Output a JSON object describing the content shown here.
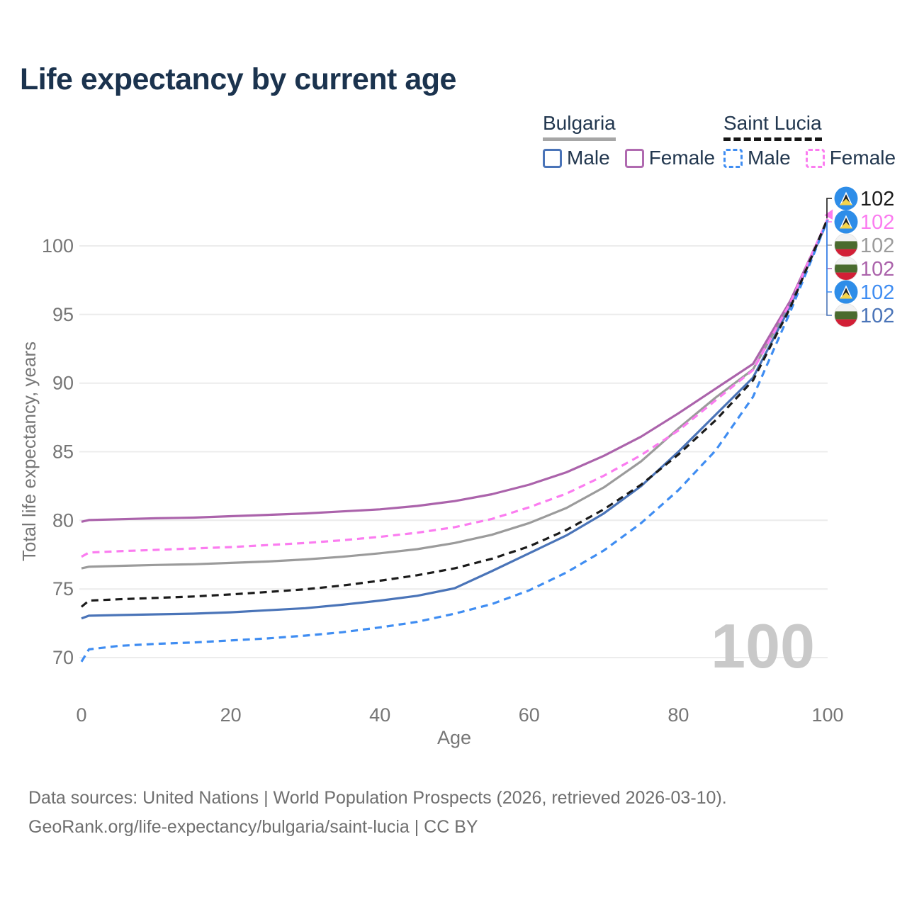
{
  "title": "Life expectancy by current age",
  "legend": {
    "groups": [
      {
        "label": "Bulgaria",
        "underline_style": "solid",
        "underline_color": "#a6a6a6",
        "items": [
          {
            "label": "Male",
            "color": "#4a74b8",
            "dashed": false
          },
          {
            "label": "Female",
            "color": "#b06ab0",
            "dashed": false
          }
        ]
      },
      {
        "label": "Saint Lucia",
        "underline_style": "dashed",
        "underline_color": "#161616",
        "items": [
          {
            "label": "Male",
            "color": "#3f8df2",
            "dashed": true
          },
          {
            "label": "Female",
            "color": "#fb7cf0",
            "dashed": true
          }
        ]
      }
    ]
  },
  "chart_data": {
    "type": "line",
    "title": "Life expectancy by current age",
    "xlabel": "Age",
    "ylabel": "Total life expectancy, years",
    "xticks": [
      0,
      20,
      40,
      60,
      80,
      100
    ],
    "yticks": [
      70,
      75,
      80,
      85,
      90,
      95,
      100
    ],
    "xlim": [
      0,
      100
    ],
    "ylim": [
      68.5,
      103.5
    ],
    "grid": "horizontal",
    "legend_position": "top-right",
    "watermark": "100",
    "x": [
      0,
      1,
      5,
      10,
      15,
      20,
      25,
      30,
      35,
      40,
      45,
      50,
      55,
      60,
      65,
      70,
      75,
      80,
      85,
      90,
      95,
      100
    ],
    "series": [
      {
        "name": "Bulgaria Total",
        "country": "Bulgaria",
        "sex": "Both",
        "color": "#9b9b9b",
        "dashed": false,
        "flag": "bulgaria",
        "label_row": 2,
        "end_label": "102",
        "values": [
          76.5,
          76.62,
          76.68,
          76.75,
          76.8,
          76.9,
          77.0,
          77.15,
          77.35,
          77.6,
          77.9,
          78.35,
          78.95,
          79.8,
          80.9,
          82.4,
          84.3,
          86.7,
          88.95,
          91.0,
          95.8,
          101.94
        ]
      },
      {
        "name": "Bulgaria Female",
        "country": "Bulgaria",
        "sex": "Female",
        "color": "#ab63ab",
        "dashed": false,
        "flag": "bulgaria",
        "label_row": 3,
        "end_label": "102",
        "values": [
          79.9,
          80.02,
          80.08,
          80.15,
          80.2,
          80.3,
          80.4,
          80.5,
          80.65,
          80.8,
          81.05,
          81.4,
          81.9,
          82.6,
          83.5,
          84.7,
          86.1,
          87.8,
          89.6,
          91.4,
          96.0,
          101.91
        ]
      },
      {
        "name": "Bulgaria Male",
        "country": "Bulgaria",
        "sex": "Male",
        "color": "#4a74b8",
        "dashed": false,
        "flag": "bulgaria",
        "label_row": 5,
        "end_label": "102",
        "values": [
          72.85,
          73.05,
          73.1,
          73.15,
          73.2,
          73.3,
          73.45,
          73.6,
          73.85,
          74.15,
          74.5,
          75.05,
          76.3,
          77.6,
          78.9,
          80.5,
          82.5,
          85.0,
          87.7,
          90.4,
          95.6,
          101.85
        ]
      },
      {
        "name": "Saint Lucia Female",
        "country": "Saint Lucia",
        "sex": "Female",
        "color": "#fb7cf0",
        "dashed": true,
        "flag": "saint-lucia",
        "label_row": 1,
        "end_label": "102",
        "values": [
          77.35,
          77.65,
          77.75,
          77.85,
          77.95,
          78.05,
          78.2,
          78.35,
          78.55,
          78.8,
          79.1,
          79.5,
          80.1,
          80.95,
          81.95,
          83.25,
          84.75,
          86.55,
          88.75,
          90.95,
          95.85,
          101.97
        ]
      },
      {
        "name": "Saint Lucia Male",
        "country": "Saint Lucia",
        "sex": "Male",
        "color": "#3f8df2",
        "dashed": true,
        "flag": "saint-lucia",
        "label_row": 4,
        "end_label": "102",
        "values": [
          69.7,
          70.6,
          70.85,
          71.0,
          71.1,
          71.25,
          71.4,
          71.6,
          71.85,
          72.2,
          72.6,
          73.2,
          73.9,
          74.9,
          76.2,
          77.8,
          79.8,
          82.2,
          85.1,
          89.0,
          95.2,
          101.88
        ]
      },
      {
        "name": "Saint Lucia Total",
        "country": "Saint Lucia",
        "sex": "Both",
        "color": "#1b1b1b",
        "dashed": true,
        "flag": "saint-lucia",
        "label_row": 0,
        "end_label": "102",
        "values": [
          73.7,
          74.15,
          74.25,
          74.35,
          74.45,
          74.6,
          74.78,
          74.98,
          75.25,
          75.6,
          76.0,
          76.5,
          77.2,
          78.1,
          79.3,
          80.8,
          82.6,
          84.8,
          87.3,
          90.2,
          95.5,
          102.0
        ]
      }
    ]
  },
  "footer": {
    "line1": "Data sources: United Nations | World Population Prospects (2026, retrieved 2026-03-10).",
    "line2": "GeoRank.org/life-expectancy/bulgaria/saint-lucia | CC BY"
  }
}
